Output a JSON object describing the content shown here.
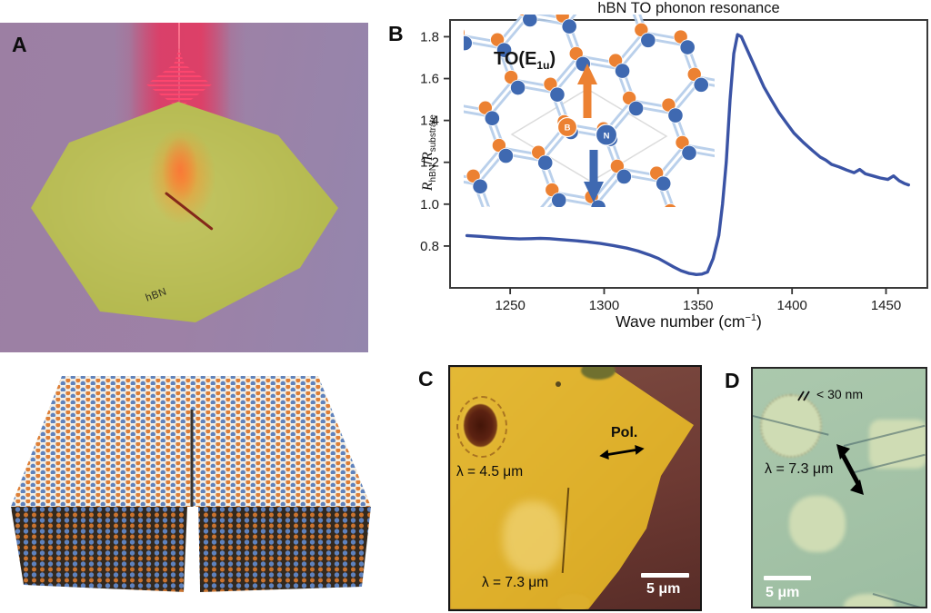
{
  "panels": {
    "a_label": "A",
    "b_label": "B",
    "c_label": "C",
    "d_label": "D"
  },
  "panel_a": {
    "flake_label": "hBN"
  },
  "panel_b": {
    "title": "hBN TO phonon resonance",
    "inset": {
      "mode_prefix": "TO(E",
      "mode_sub": "1u",
      "mode_suffix": ")",
      "boron": "B",
      "nitrogen": "N"
    },
    "ylabel": {
      "r": "R",
      "sub_num": "hBN",
      "slash": "/",
      "r2": "R",
      "sub_den": "substrate"
    },
    "xlabel": {
      "prefix": "Wave number (cm",
      "sup": "−1",
      "suffix": ")"
    }
  },
  "chart_data": {
    "type": "line",
    "title": "hBN TO phonon resonance",
    "xlabel": "Wave number (cm⁻¹)",
    "ylabel": "R_hBN / R_substrate",
    "xlim": [
      1218,
      1472
    ],
    "ylim": [
      0.6,
      1.88
    ],
    "xticks": [
      1250,
      1300,
      1350,
      1400,
      1450
    ],
    "yticks": [
      0.8,
      1.0,
      1.2,
      1.4,
      1.6,
      1.8
    ],
    "grid": false,
    "legend": "none",
    "line_color": "#3a53a5",
    "series": [
      {
        "name": "R_hBN/R_substrate",
        "x": [
          1227,
          1234,
          1241,
          1248,
          1255,
          1261,
          1266,
          1271,
          1277,
          1284,
          1291,
          1298,
          1305,
          1312,
          1318,
          1324,
          1329,
          1333,
          1337,
          1341,
          1345,
          1349,
          1352,
          1355,
          1358,
          1361,
          1363,
          1365,
          1367,
          1369,
          1371,
          1373,
          1375,
          1378,
          1381,
          1385,
          1389,
          1393,
          1397,
          1401,
          1406,
          1411,
          1415,
          1418,
          1421,
          1425,
          1429,
          1433,
          1436,
          1439,
          1443,
          1447,
          1451,
          1454,
          1457,
          1460,
          1462
        ],
        "y": [
          0.85,
          0.846,
          0.841,
          0.837,
          0.834,
          0.835,
          0.837,
          0.835,
          0.831,
          0.826,
          0.82,
          0.812,
          0.802,
          0.79,
          0.776,
          0.758,
          0.74,
          0.72,
          0.7,
          0.682,
          0.67,
          0.664,
          0.666,
          0.676,
          0.74,
          0.85,
          1.0,
          1.2,
          1.5,
          1.72,
          1.81,
          1.8,
          1.76,
          1.7,
          1.64,
          1.56,
          1.498,
          1.438,
          1.388,
          1.34,
          1.295,
          1.255,
          1.225,
          1.21,
          1.19,
          1.178,
          1.163,
          1.15,
          1.166,
          1.145,
          1.135,
          1.125,
          1.118,
          1.135,
          1.112,
          1.098,
          1.092
        ]
      }
    ]
  },
  "panel_c": {
    "wavelength_top": "λ = 4.5 μm",
    "wavelength_bottom": "λ = 7.3 μm",
    "polarization_label": "Pol.",
    "scale_bar": "5 μm"
  },
  "panel_d": {
    "thickness_label": "< 30 nm",
    "wavelength_label": "λ = 7.3 μm",
    "scale_bar": "5 μm"
  }
}
